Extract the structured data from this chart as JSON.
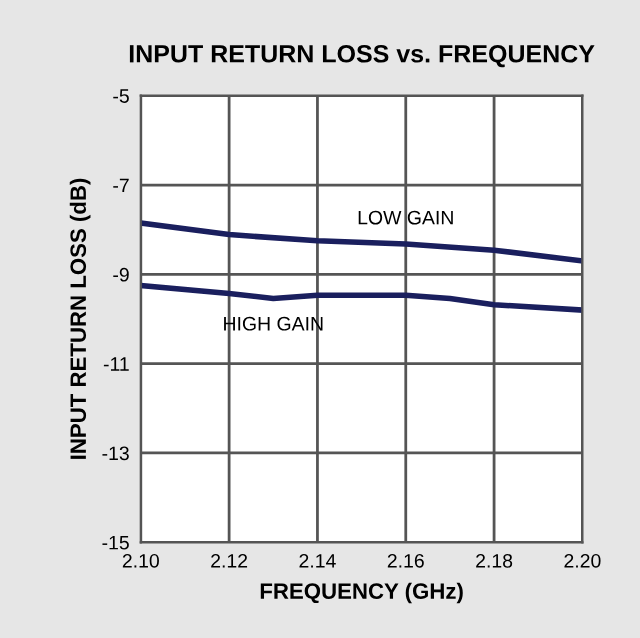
{
  "chart_data": {
    "type": "line",
    "title": "INPUT RETURN LOSS vs. FREQUENCY",
    "xlabel": "FREQUENCY (GHz)",
    "ylabel": "INPUT RETURN LOSS (dB)",
    "series": [
      {
        "name": "LOW GAIN",
        "color": "#1a1f5e",
        "x": [
          2.1,
          2.12,
          2.14,
          2.16,
          2.18,
          2.2
        ],
        "values": [
          -7.85,
          -8.11,
          -8.25,
          -8.32,
          -8.46,
          -8.7
        ]
      },
      {
        "name": "HIGH GAIN",
        "color": "#1a1f5e",
        "x": [
          2.1,
          2.12,
          2.13,
          2.14,
          2.16,
          2.17,
          2.18,
          2.2
        ],
        "values": [
          -9.25,
          -9.43,
          -9.54,
          -9.47,
          -9.47,
          -9.54,
          -9.68,
          -9.8
        ]
      }
    ],
    "xlim": [
      2.1,
      2.2
    ],
    "xticks": [
      {
        "value": 2.1,
        "label": "2.10"
      },
      2.12,
      2.14,
      2.16,
      2.18,
      {
        "value": 2.2,
        "label": "2.20"
      }
    ],
    "ylim": [
      -15,
      -5
    ],
    "yticks": [
      -15,
      -13,
      -11,
      -9,
      -7,
      -5
    ],
    "grid": true,
    "legend": false
  }
}
